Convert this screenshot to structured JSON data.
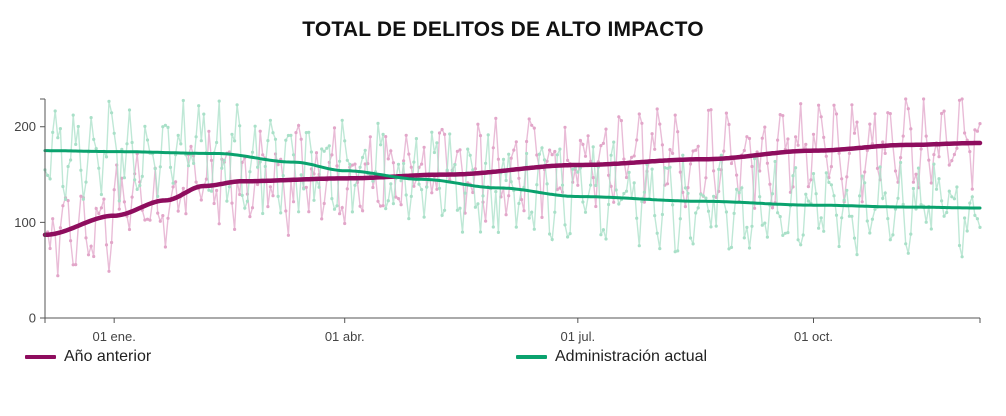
{
  "chart_data": {
    "type": "line",
    "title": "TOTAL DE DELITOS DE ALTO IMPACTO",
    "xlabel": "",
    "ylabel": "",
    "ylim": [
      0,
      229
    ],
    "xlim_days": [
      -27,
      338
    ],
    "x_unit": "days relative to 01 ene.",
    "y_ticks": [
      0,
      100,
      200
    ],
    "x_ticks": [
      {
        "day": 0,
        "label": "01 ene."
      },
      {
        "day": 90,
        "label": "01 abr."
      },
      {
        "day": 181,
        "label": "01 jul."
      },
      {
        "day": 273,
        "label": "01 oct."
      }
    ],
    "grid": false,
    "legend_position": "bottom",
    "note": "Individual daily values are not legible; only the smoothed trend lines are recorded (sampled estimates). The daily noisy series are rendered as a decorative texture.",
    "series": [
      {
        "name": "Año anterior",
        "color": "#8e0d5e",
        "daily_color": "#e2a6c9",
        "trend": [
          {
            "x": -27,
            "y": 87
          },
          {
            "x": 0,
            "y": 107
          },
          {
            "x": 20,
            "y": 123
          },
          {
            "x": 35,
            "y": 138
          },
          {
            "x": 50,
            "y": 143
          },
          {
            "x": 90,
            "y": 146
          },
          {
            "x": 130,
            "y": 150
          },
          {
            "x": 181,
            "y": 160
          },
          {
            "x": 230,
            "y": 166
          },
          {
            "x": 273,
            "y": 175
          },
          {
            "x": 310,
            "y": 181
          },
          {
            "x": 338,
            "y": 183
          }
        ]
      },
      {
        "name": "Administración actual",
        "color": "#0aa26e",
        "daily_color": "#a9e0c8",
        "trend": [
          {
            "x": -27,
            "y": 175
          },
          {
            "x": 0,
            "y": 174
          },
          {
            "x": 40,
            "y": 172
          },
          {
            "x": 70,
            "y": 163
          },
          {
            "x": 90,
            "y": 154
          },
          {
            "x": 120,
            "y": 145
          },
          {
            "x": 150,
            "y": 136
          },
          {
            "x": 181,
            "y": 127
          },
          {
            "x": 230,
            "y": 122
          },
          {
            "x": 273,
            "y": 118
          },
          {
            "x": 310,
            "y": 116
          },
          {
            "x": 338,
            "y": 115
          }
        ]
      }
    ]
  },
  "legend": {
    "items": [
      {
        "label": "Año anterior",
        "color": "#8e0d5e"
      },
      {
        "label": "Administración actual",
        "color": "#0aa26e"
      }
    ]
  }
}
